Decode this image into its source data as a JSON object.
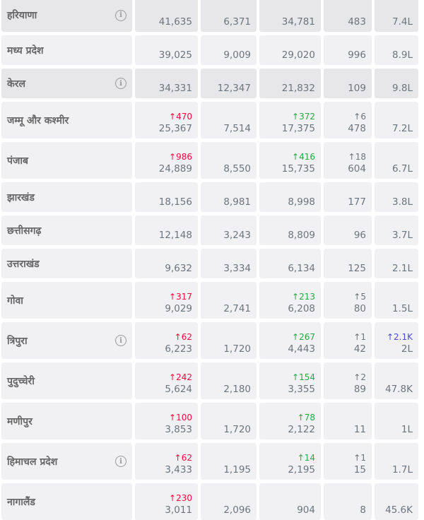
{
  "rows": [
    {
      "state": "हरियाणा",
      "info": true,
      "dark": true,
      "confirmed": "41,635",
      "confirmed_delta": "",
      "active": "6,371",
      "recovered": "34,781",
      "recovered_delta": "",
      "deceased": "483",
      "deceased_delta": "",
      "tested": "7.4L",
      "tested_delta": ""
    },
    {
      "state": "मध्य प्रदेश",
      "info": false,
      "dark": false,
      "confirmed": "39,025",
      "confirmed_delta": "",
      "active": "9,009",
      "recovered": "29,020",
      "recovered_delta": "",
      "deceased": "996",
      "deceased_delta": "",
      "tested": "8.9L",
      "tested_delta": ""
    },
    {
      "state": "केरल",
      "info": true,
      "dark": true,
      "confirmed": "34,331",
      "confirmed_delta": "",
      "active": "12,347",
      "recovered": "21,832",
      "recovered_delta": "",
      "deceased": "109",
      "deceased_delta": "",
      "tested": "9.8L",
      "tested_delta": ""
    },
    {
      "state": "जम्मू और कश्मीर",
      "info": false,
      "dark": false,
      "confirmed": "25,367",
      "confirmed_delta": "↑470",
      "active": "7,514",
      "recovered": "17,375",
      "recovered_delta": "↑372",
      "deceased": "478",
      "deceased_delta": "↑6",
      "tested": "7.2L",
      "tested_delta": ""
    },
    {
      "state": "पंजाब",
      "info": false,
      "dark": false,
      "confirmed": "24,889",
      "confirmed_delta": "↑986",
      "active": "8,550",
      "recovered": "15,735",
      "recovered_delta": "↑416",
      "deceased": "604",
      "deceased_delta": "↑18",
      "tested": "6.7L",
      "tested_delta": ""
    },
    {
      "state": "झारखंड",
      "info": false,
      "dark": false,
      "confirmed": "18,156",
      "confirmed_delta": "",
      "active": "8,981",
      "recovered": "8,998",
      "recovered_delta": "",
      "deceased": "177",
      "deceased_delta": "",
      "tested": "3.8L",
      "tested_delta": ""
    },
    {
      "state": "छत्तीसगढ़",
      "info": false,
      "dark": false,
      "confirmed": "12,148",
      "confirmed_delta": "",
      "active": "3,243",
      "recovered": "8,809",
      "recovered_delta": "",
      "deceased": "96",
      "deceased_delta": "",
      "tested": "3.7L",
      "tested_delta": ""
    },
    {
      "state": "उत्तराखंड",
      "info": false,
      "dark": false,
      "confirmed": "9,632",
      "confirmed_delta": "",
      "active": "3,334",
      "recovered": "6,134",
      "recovered_delta": "",
      "deceased": "125",
      "deceased_delta": "",
      "tested": "2.1L",
      "tested_delta": ""
    },
    {
      "state": "गोवा",
      "info": false,
      "dark": false,
      "confirmed": "9,029",
      "confirmed_delta": "↑317",
      "active": "2,741",
      "recovered": "6,208",
      "recovered_delta": "↑213",
      "deceased": "80",
      "deceased_delta": "↑5",
      "tested": "1.5L",
      "tested_delta": ""
    },
    {
      "state": "त्रिपुरा",
      "info": true,
      "dark": false,
      "confirmed": "6,223",
      "confirmed_delta": "↑62",
      "active": "1,720",
      "recovered": "4,443",
      "recovered_delta": "↑267",
      "deceased": "42",
      "deceased_delta": "↑1",
      "tested": "2L",
      "tested_delta": "↑2.1K"
    },
    {
      "state": "पुदुच्चेरी",
      "info": false,
      "dark": false,
      "confirmed": "5,624",
      "confirmed_delta": "↑242",
      "active": "2,180",
      "recovered": "3,355",
      "recovered_delta": "↑154",
      "deceased": "89",
      "deceased_delta": "↑2",
      "tested": "47.8K",
      "tested_delta": ""
    },
    {
      "state": "मणीपुर",
      "info": false,
      "dark": false,
      "confirmed": "3,853",
      "confirmed_delta": "↑100",
      "active": "1,720",
      "recovered": "2,122",
      "recovered_delta": "↑78",
      "deceased": "11",
      "deceased_delta": "",
      "tested": "1L",
      "tested_delta": ""
    },
    {
      "state": "हिमाचल प्रदेश",
      "info": true,
      "dark": false,
      "confirmed": "3,433",
      "confirmed_delta": "↑62",
      "active": "1,195",
      "recovered": "2,195",
      "recovered_delta": "↑14",
      "deceased": "15",
      "deceased_delta": "↑1",
      "tested": "1.7L",
      "tested_delta": ""
    },
    {
      "state": "नागालैंड",
      "info": false,
      "dark": false,
      "confirmed": "3,011",
      "confirmed_delta": "↑230",
      "active": "2,096",
      "recovered": "904",
      "recovered_delta": "",
      "deceased": "8",
      "deceased_delta": "",
      "tested": "45.6K",
      "tested_delta": ""
    }
  ],
  "info_icon_glyph": "i",
  "colors": {
    "confirmed_delta": "#ff073a",
    "recovered_delta": "#28a745",
    "deceased_delta": "#6c757d",
    "tested_delta": "#4b4bd6"
  }
}
